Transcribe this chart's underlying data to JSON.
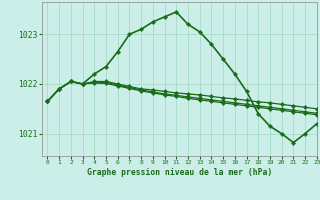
{
  "title": "Graphe pression niveau de la mer (hPa)",
  "bg_color": "#cceee8",
  "grid_color": "#aaddcc",
  "line_color": "#1a6b1a",
  "xlim": [
    -0.5,
    23
  ],
  "ylim": [
    1020.55,
    1023.65
  ],
  "yticks": [
    1021,
    1022,
    1023
  ],
  "xticks": [
    0,
    1,
    2,
    3,
    4,
    5,
    6,
    7,
    8,
    9,
    10,
    11,
    12,
    13,
    14,
    15,
    16,
    17,
    18,
    19,
    20,
    21,
    22,
    23
  ],
  "series": [
    [
      1021.65,
      1021.9,
      1022.05,
      1022.0,
      1022.2,
      1022.35,
      1022.65,
      1023.0,
      1023.1,
      1023.25,
      1023.35,
      1023.45,
      1023.2,
      1023.05,
      1022.8,
      1022.5,
      1022.2,
      1021.85,
      1021.4,
      1021.15,
      1021.0,
      1020.82,
      1021.0,
      1021.2
    ],
    [
      1021.65,
      1021.9,
      1022.05,
      1022.0,
      1022.05,
      1022.05,
      1022.0,
      1021.95,
      1021.9,
      1021.88,
      1021.85,
      1021.82,
      1021.8,
      1021.78,
      1021.75,
      1021.72,
      1021.7,
      1021.67,
      1021.64,
      1021.62,
      1021.59,
      1021.56,
      1021.53,
      1021.5
    ],
    [
      1021.65,
      1021.9,
      1022.05,
      1022.0,
      1022.03,
      1022.03,
      1021.98,
      1021.93,
      1021.88,
      1021.84,
      1021.8,
      1021.77,
      1021.74,
      1021.71,
      1021.68,
      1021.65,
      1021.62,
      1021.59,
      1021.56,
      1021.53,
      1021.5,
      1021.47,
      1021.44,
      1021.41
    ],
    [
      1021.65,
      1021.9,
      1022.05,
      1022.0,
      1022.02,
      1022.01,
      1021.96,
      1021.91,
      1021.86,
      1021.82,
      1021.78,
      1021.75,
      1021.71,
      1021.68,
      1021.65,
      1021.62,
      1021.59,
      1021.56,
      1021.53,
      1021.5,
      1021.47,
      1021.44,
      1021.41,
      1021.38
    ]
  ]
}
